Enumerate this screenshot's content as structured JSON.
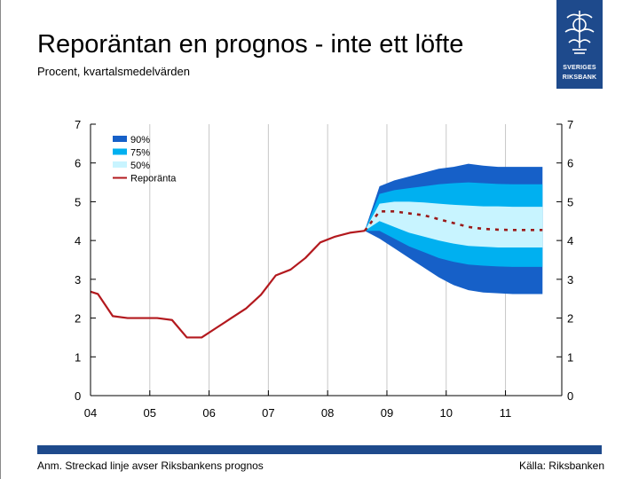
{
  "header": {
    "title": "Reporäntan en prognos - inte ett löfte",
    "subtitle": "Procent, kvartalsmedelvärden"
  },
  "logo": {
    "name_line1": "SVERIGES",
    "name_line2": "RIKSBANK",
    "icon": "crown-emblem-icon"
  },
  "footer": {
    "note": "Anm. Streckad linje avser Riksbankens prognos",
    "source": "Källa: Riksbanken"
  },
  "colors": {
    "band90": "#1660c8",
    "band75": "#00b0f0",
    "band50": "#c8f4ff",
    "repo": "#b3191e",
    "forecast": "#9a1a1a",
    "axis": "#000000",
    "grid": "#c8c8c8",
    "brand": "#1e4a8c"
  },
  "chart_data": {
    "type": "area",
    "title": "Reporäntan en prognos - inte ett löfte",
    "ylabel": "Procent, kvartalsmedelvärden",
    "xlim": [
      2004.0,
      2011.95
    ],
    "ylim": [
      0,
      7
    ],
    "x_ticks": [
      2004,
      2005,
      2006,
      2007,
      2008,
      2009,
      2010,
      2011
    ],
    "x_tick_labels": [
      "04",
      "05",
      "06",
      "07",
      "08",
      "09",
      "10",
      "11"
    ],
    "y_ticks": [
      0,
      1,
      2,
      3,
      4,
      5,
      6,
      7
    ],
    "y_tick_labels": [
      "0",
      "1",
      "2",
      "3",
      "4",
      "5",
      "6",
      "7"
    ],
    "grid": true,
    "legend": [
      "90%",
      "75%",
      "50%",
      "Reporänta"
    ],
    "legend_position": "top-left",
    "repo_series": {
      "name": "Reporänta",
      "x": [
        2004.0,
        2004.125,
        2004.375,
        2004.625,
        2004.875,
        2005.125,
        2005.375,
        2005.625,
        2005.875,
        2006.125,
        2006.375,
        2006.625,
        2006.875,
        2007.125,
        2007.375,
        2007.625,
        2007.875,
        2008.125,
        2008.375,
        2008.625
      ],
      "values": [
        2.68,
        2.62,
        2.05,
        2.0,
        2.0,
        2.0,
        1.95,
        1.5,
        1.5,
        1.75,
        2.0,
        2.25,
        2.6,
        3.1,
        3.25,
        3.55,
        3.95,
        4.1,
        4.2,
        4.25
      ]
    },
    "forecast_series": {
      "name": "Prognos",
      "x": [
        2008.625,
        2008.875,
        2009.125,
        2009.375,
        2009.625,
        2009.875,
        2010.125,
        2010.375,
        2010.625,
        2010.875,
        2011.125,
        2011.375,
        2011.625
      ],
      "values": [
        4.25,
        4.75,
        4.75,
        4.7,
        4.65,
        4.55,
        4.45,
        4.35,
        4.3,
        4.28,
        4.27,
        4.27,
        4.27
      ]
    },
    "fan_x": [
      2008.625,
      2008.875,
      2009.125,
      2009.375,
      2009.625,
      2009.875,
      2010.125,
      2010.375,
      2010.625,
      2010.875,
      2011.125,
      2011.375,
      2011.625
    ],
    "bands": [
      {
        "name": "90%",
        "upper": [
          4.25,
          5.4,
          5.55,
          5.65,
          5.75,
          5.85,
          5.9,
          5.98,
          5.93,
          5.9,
          5.9,
          5.9,
          5.9
        ],
        "lower": [
          4.25,
          4.05,
          3.8,
          3.55,
          3.3,
          3.05,
          2.85,
          2.72,
          2.66,
          2.64,
          2.62,
          2.62,
          2.62
        ]
      },
      {
        "name": "75%",
        "upper": [
          4.25,
          5.2,
          5.3,
          5.35,
          5.4,
          5.45,
          5.48,
          5.5,
          5.48,
          5.46,
          5.45,
          5.45,
          5.45
        ],
        "lower": [
          4.25,
          4.25,
          4.05,
          3.85,
          3.7,
          3.55,
          3.45,
          3.38,
          3.35,
          3.33,
          3.32,
          3.32,
          3.32
        ]
      },
      {
        "name": "50%",
        "upper": [
          4.25,
          4.95,
          5.0,
          5.0,
          4.98,
          4.95,
          4.92,
          4.9,
          4.88,
          4.88,
          4.87,
          4.87,
          4.87
        ],
        "lower": [
          4.25,
          4.5,
          4.35,
          4.2,
          4.1,
          4.0,
          3.92,
          3.86,
          3.84,
          3.82,
          3.82,
          3.82,
          3.82
        ]
      }
    ]
  }
}
